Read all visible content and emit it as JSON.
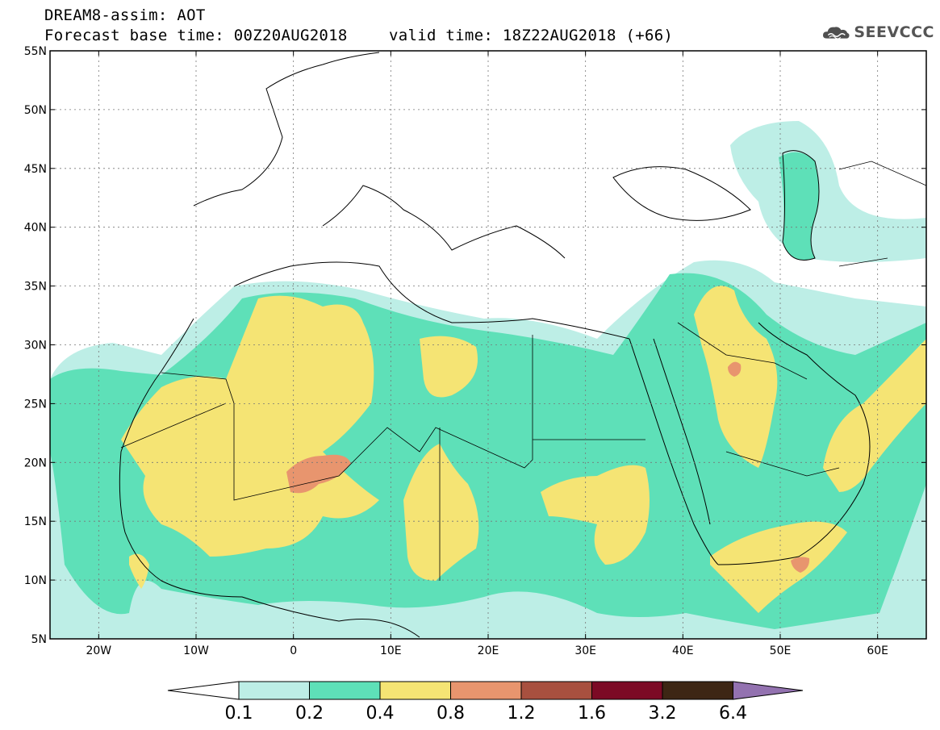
{
  "title": {
    "line1": "DREAM8-assim: AOT",
    "line2": "Forecast base time: 00Z20AUG2018",
    "valid": "valid time: 18Z22AUG2018 (+66)"
  },
  "logo": {
    "icon": "cloud-icon",
    "text": "SEEVCCC"
  },
  "map": {
    "lon_range": [
      -25,
      65
    ],
    "lat_range": [
      5,
      55
    ],
    "lat_ticks": [
      {
        "value": 55,
        "label": "55N"
      },
      {
        "value": 50,
        "label": "50N"
      },
      {
        "value": 45,
        "label": "45N"
      },
      {
        "value": 40,
        "label": "40N"
      },
      {
        "value": 35,
        "label": "35N"
      },
      {
        "value": 30,
        "label": "30N"
      },
      {
        "value": 25,
        "label": "25N"
      },
      {
        "value": 20,
        "label": "20N"
      },
      {
        "value": 15,
        "label": "15N"
      },
      {
        "value": 10,
        "label": "10N"
      },
      {
        "value": 5,
        "label": "5N"
      }
    ],
    "lon_ticks": [
      {
        "value": -20,
        "label": "20W"
      },
      {
        "value": -10,
        "label": "10W"
      },
      {
        "value": 0,
        "label": "0"
      },
      {
        "value": 10,
        "label": "10E"
      },
      {
        "value": 20,
        "label": "20E"
      },
      {
        "value": 30,
        "label": "30E"
      },
      {
        "value": 40,
        "label": "40E"
      },
      {
        "value": 50,
        "label": "50E"
      },
      {
        "value": 60,
        "label": "60E"
      }
    ]
  },
  "colorbar": {
    "colors": [
      "#ffffff",
      "#bdeee6",
      "#5ee0b8",
      "#f5e474",
      "#e8956e",
      "#a8503f",
      "#7c0a25",
      "#3d2614",
      "#9372b0"
    ],
    "labels": [
      "0.1",
      "0.2",
      "0.4",
      "0.8",
      "1.2",
      "1.6",
      "3.2",
      "6.4"
    ]
  }
}
